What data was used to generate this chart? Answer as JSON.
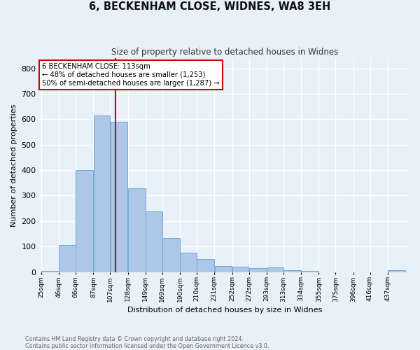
{
  "title": "6, BECKENHAM CLOSE, WIDNES, WA8 3EH",
  "subtitle": "Size of property relative to detached houses in Widnes",
  "xlabel": "Distribution of detached houses by size in Widnes",
  "ylabel": "Number of detached properties",
  "footnote1": "Contains HM Land Registry data © Crown copyright and database right 2024.",
  "footnote2": "Contains public sector information licensed under the Open Government Licence v3.0.",
  "bar_labels": [
    "25sqm",
    "46sqm",
    "66sqm",
    "87sqm",
    "107sqm",
    "128sqm",
    "149sqm",
    "169sqm",
    "190sqm",
    "210sqm",
    "231sqm",
    "252sqm",
    "272sqm",
    "293sqm",
    "313sqm",
    "334sqm",
    "355sqm",
    "375sqm",
    "396sqm",
    "416sqm",
    "437sqm"
  ],
  "bar_values": [
    5,
    105,
    400,
    615,
    590,
    330,
    238,
    135,
    75,
    50,
    25,
    20,
    15,
    17,
    6,
    5,
    0,
    0,
    0,
    0,
    8
  ],
  "bar_color": "#aec6e8",
  "bar_edge_color": "#6aaed6",
  "background_color": "#e8f0f8",
  "grid_color": "#ffffff",
  "annotation_text": "6 BECKENHAM CLOSE: 113sqm\n← 48% of detached houses are smaller (1,253)\n50% of semi-detached houses are larger (1,287) →",
  "annotation_box_color": "#ffffff",
  "annotation_box_edge": "#cc0000",
  "vline_x": 113,
  "vline_color": "#cc0000",
  "ylim": [
    0,
    840
  ],
  "yticks": [
    0,
    100,
    200,
    300,
    400,
    500,
    600,
    700,
    800
  ],
  "bin_edges": [
    25,
    46,
    66,
    87,
    107,
    128,
    149,
    169,
    190,
    210,
    231,
    252,
    272,
    293,
    313,
    334,
    355,
    375,
    396,
    416,
    437,
    458
  ]
}
